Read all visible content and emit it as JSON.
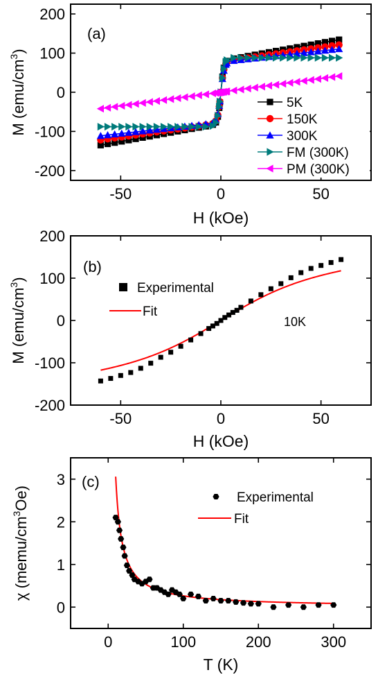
{
  "chart_data": [
    {
      "type": "line",
      "panel_label": "(a)",
      "xlabel": "H (kOe)",
      "ylabel_main": "M (emu/cm",
      "ylabel_sup": "3",
      "ylabel_end": ")",
      "xlim": [
        -75,
        75
      ],
      "ylim": [
        -225,
        225
      ],
      "xticks": [
        -50,
        0,
        50
      ],
      "yticks": [
        -200,
        -100,
        0,
        100,
        200
      ],
      "legend_placement": "bottom-right",
      "series": [
        {
          "name": "5K",
          "color": "#000000",
          "marker": "square",
          "chi": 0.92,
          "ms": 80,
          "h0": 1.5
        },
        {
          "name": "150K",
          "color": "#ff0000",
          "marker": "circle",
          "chi": 0.73,
          "ms": 78,
          "h0": 1.6
        },
        {
          "name": "300K",
          "color": "#0000ff",
          "marker": "triangle-up",
          "chi": 0.57,
          "ms": 77,
          "h0": 1.7
        },
        {
          "name": "FM (300K)",
          "color": "#007b7b",
          "marker": "triangle-right",
          "chi": 0.0,
          "ms": 88,
          "h0": 1.8
        },
        {
          "name": "PM (300K)",
          "color": "#ff00ff",
          "marker": "triangle-left",
          "chi": 0.7,
          "ms": 0,
          "h0": 1.0
        }
      ]
    },
    {
      "type": "line",
      "panel_label": "(b)",
      "xlabel": "H (kOe)",
      "ylabel_main": "M (emu/cm",
      "ylabel_sup": "3",
      "ylabel_end": ")",
      "xlim": [
        -75,
        75
      ],
      "ylim": [
        -200,
        200
      ],
      "xticks": [
        -50,
        0,
        50
      ],
      "yticks": [
        -200,
        -100,
        0,
        100,
        200
      ],
      "annotation": "10K",
      "legend_placement": "top-left",
      "series": [
        {
          "name": "Experimental",
          "color": "#000000",
          "marker": "square",
          "x": [
            -60,
            -55,
            -50,
            -45,
            -40,
            -35,
            -30,
            -25,
            -20,
            -15,
            -10,
            -6,
            -4,
            -2,
            0,
            2,
            4,
            6,
            8,
            10,
            15,
            20,
            25,
            30,
            35,
            40,
            45,
            50,
            55,
            60
          ],
          "y": [
            -143,
            -137,
            -130,
            -123,
            -113,
            -101,
            -87,
            -75,
            -61,
            -46,
            -31,
            -19,
            -13,
            -7,
            0,
            7,
            13,
            19,
            24,
            31,
            46,
            61,
            75,
            87,
            101,
            113,
            123,
            130,
            137,
            144
          ]
        },
        {
          "name": "Fit",
          "color": "#ff0000",
          "a": 90,
          "b": 40
        }
      ]
    },
    {
      "type": "scatter",
      "panel_label": "(c)",
      "xlabel": "T (K)",
      "ylabel_main": "χ (memu/cm",
      "ylabel_sup": "3",
      "ylabel_end": "Oe)",
      "xlim": [
        -50,
        350
      ],
      "ylim": [
        -0.5,
        3.5
      ],
      "xticks": [
        0,
        100,
        200,
        300
      ],
      "yticks": [
        0,
        1,
        2,
        3
      ],
      "legend_placement": "top-right",
      "series": [
        {
          "name": "Experimental",
          "color": "#000000",
          "marker": "hexagon",
          "x": [
            10,
            13,
            15,
            17,
            20,
            22,
            25,
            28,
            32,
            35,
            40,
            45,
            50,
            55,
            60,
            65,
            70,
            75,
            80,
            85,
            90,
            95,
            100,
            110,
            120,
            130,
            140,
            150,
            160,
            170,
            180,
            190,
            200,
            220,
            240,
            260,
            280,
            300
          ],
          "y": [
            2.1,
            2.0,
            1.8,
            1.6,
            1.4,
            1.2,
            0.98,
            0.85,
            0.75,
            0.65,
            0.6,
            0.55,
            0.6,
            0.65,
            0.45,
            0.45,
            0.4,
            0.35,
            0.3,
            0.4,
            0.35,
            0.3,
            0.2,
            0.3,
            0.25,
            0.15,
            0.2,
            0.15,
            0.15,
            0.12,
            0.1,
            0.08,
            0.08,
            0.0,
            0.05,
            0.0,
            0.05,
            0.05
          ]
        },
        {
          "name": "Fit",
          "color": "#ff0000",
          "c": 26,
          "t0": 1.5
        }
      ]
    }
  ]
}
